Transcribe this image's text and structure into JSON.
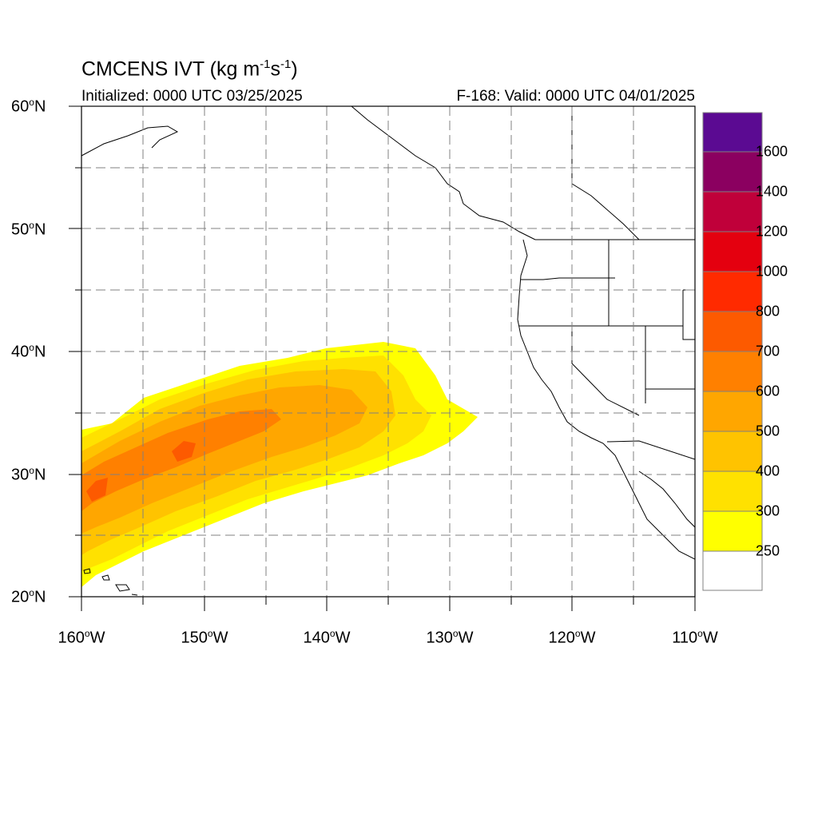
{
  "header": {
    "title": "CMCENS IVT (kg m",
    "title_sup1": "-1",
    "title_mid": "s",
    "title_sup2": "-1",
    "title_end": ")",
    "initialized": "Initialized: 0000 UTC 03/25/2025",
    "valid": "F-168: Valid: 0000 UTC 04/01/2025"
  },
  "map": {
    "lat_labels": [
      "60",
      "50",
      "40",
      "30",
      "20"
    ],
    "lat_suffix": "N",
    "lon_labels": [
      "160",
      "150",
      "140",
      "130",
      "120",
      "110"
    ],
    "lon_suffix": "W",
    "extent": {
      "lon_min": -160,
      "lon_max": -110,
      "lat_min": 20,
      "lat_max": 60
    },
    "gridlines": "dashed every 5 degrees"
  },
  "colorbar": {
    "labels": [
      "1600",
      "1400",
      "1200",
      "1000",
      "800",
      "700",
      "600",
      "500",
      "400",
      "300",
      "250"
    ],
    "colors": [
      "#5b0a92",
      "#8b0060",
      "#c0003a",
      "#e4000f",
      "#ff2a00",
      "#fd5a00",
      "#ff8000",
      "#ffa600",
      "#ffc300",
      "#ffe100",
      "#ffff00",
      "#ffffff"
    ]
  },
  "ivt_plume": {
    "description_levels": [
      "250",
      "300",
      "400",
      "500",
      "600",
      "700"
    ],
    "max_level_shown": "700"
  }
}
